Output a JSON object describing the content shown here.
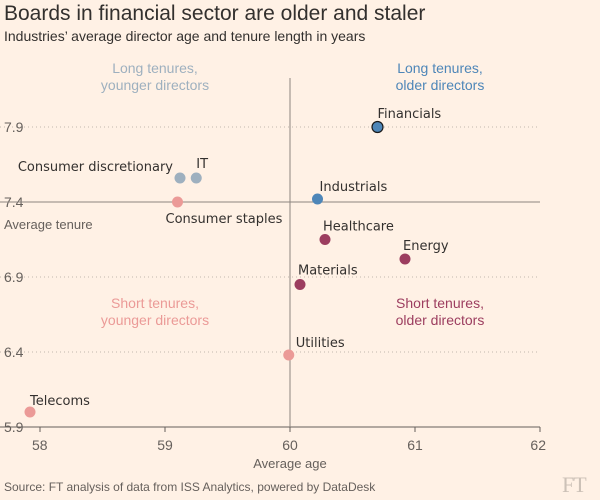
{
  "header": {
    "title": "Boards in financial sector are older and staler",
    "subtitle": "Industries’ average director age and tenure length in years"
  },
  "footer": {
    "source": "Source: FT analysis of data from ISS Analytics, powered by DataDesk",
    "logo": "FT"
  },
  "chart_data": {
    "type": "scatter",
    "xlabel": "Average age",
    "ylabel": "",
    "xlim": [
      58,
      62
    ],
    "ylim": [
      5.9,
      8.1
    ],
    "x_ticks": [
      58,
      59,
      60,
      61,
      62
    ],
    "y_ticks": [
      5.9,
      6.4,
      6.9,
      7.4,
      7.9
    ],
    "grid": "horizontal dotted",
    "reference_lines": {
      "x": {
        "value": 60,
        "label": ""
      },
      "y": {
        "value": 7.4,
        "label": "Average tenure"
      }
    },
    "quadrants": [
      {
        "text": [
          "Long tenures,",
          "younger directors"
        ],
        "color": "#9eb0bf"
      },
      {
        "text": [
          "Long tenures,",
          "older directors"
        ],
        "color": "#4e86b8"
      },
      {
        "text": [
          "Short tenures,",
          "younger directors"
        ],
        "color": "#eb9a97"
      },
      {
        "text": [
          "Short tenures,",
          "older directors"
        ],
        "color": "#9c3d5f"
      }
    ],
    "points": [
      {
        "name": "Financials",
        "x": 60.7,
        "y": 7.9,
        "color": "#4e86b8",
        "outline": true
      },
      {
        "name": "Industrials",
        "x": 60.22,
        "y": 7.42,
        "color": "#4e86b8"
      },
      {
        "name": "Consumer discretionary",
        "x": 59.12,
        "y": 7.56,
        "color": "#9eb0bf"
      },
      {
        "name": "IT",
        "x": 59.25,
        "y": 7.56,
        "color": "#9eb0bf"
      },
      {
        "name": "Consumer staples",
        "x": 59.1,
        "y": 7.4,
        "color": "#eb9a97"
      },
      {
        "name": "Healthcare",
        "x": 60.28,
        "y": 7.15,
        "color": "#9c3d5f"
      },
      {
        "name": "Energy",
        "x": 60.92,
        "y": 7.02,
        "color": "#9c3d5f"
      },
      {
        "name": "Materials",
        "x": 60.08,
        "y": 6.85,
        "color": "#9c3d5f"
      },
      {
        "name": "Utilities",
        "x": 59.99,
        "y": 6.38,
        "color": "#eb9a97"
      },
      {
        "name": "Telecoms",
        "x": 57.92,
        "y": 6.0,
        "color": "#eb9a97"
      }
    ]
  }
}
